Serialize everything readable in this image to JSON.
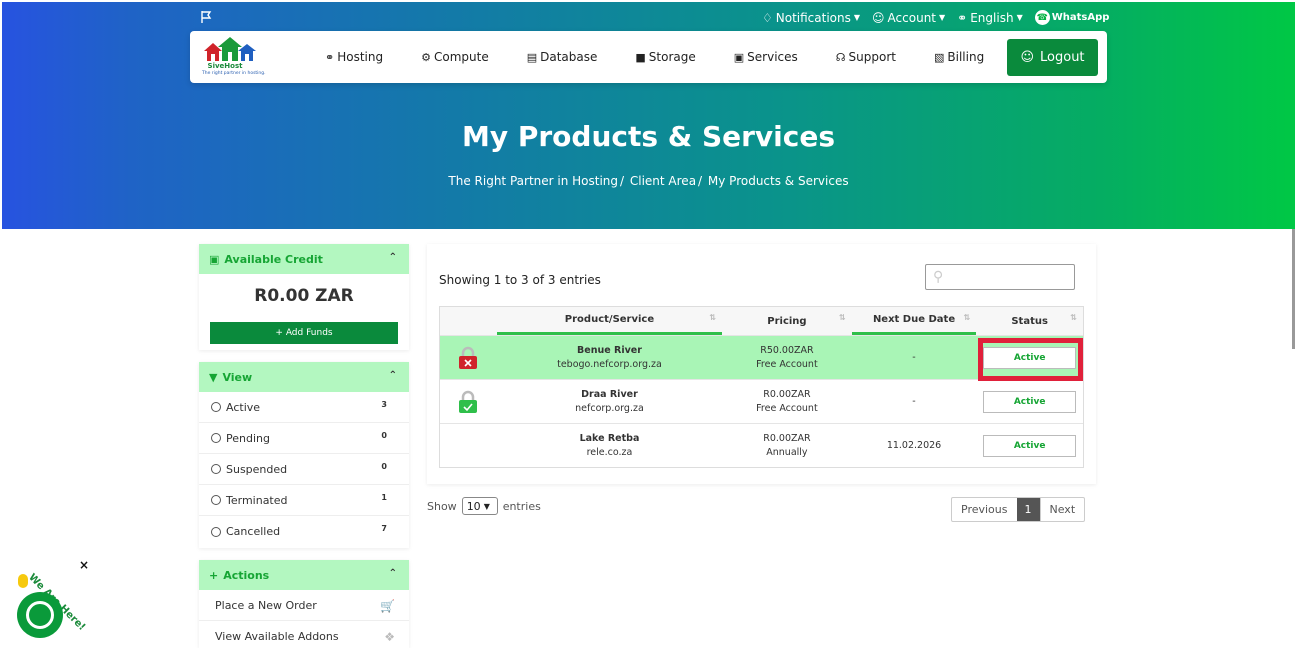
{
  "topbar": {
    "notifications": "Notifications",
    "account": "Account",
    "language": "English",
    "whatsapp": "WhatsApp"
  },
  "brand": {
    "name": "SiveHost",
    "tagline": "The right partner in hosting."
  },
  "nav": {
    "items": [
      {
        "label": "Hosting",
        "icon": "globe-icon"
      },
      {
        "label": "Compute",
        "icon": "gear-icon"
      },
      {
        "label": "Database",
        "icon": "database-icon"
      },
      {
        "label": "Storage",
        "icon": "box-icon"
      },
      {
        "label": "Services",
        "icon": "gift-icon"
      },
      {
        "label": "Support",
        "icon": "headset-icon"
      },
      {
        "label": "Billing",
        "icon": "receipt-icon"
      }
    ],
    "logout": "Logout"
  },
  "page": {
    "title": "My Products & Services",
    "breadcrumb": [
      "The Right Partner in Hosting",
      "Client Area",
      "My Products & Services"
    ]
  },
  "sidebar": {
    "credit": {
      "title": "Available Credit",
      "amount": "R0.00 ZAR",
      "add_funds": "Add Funds"
    },
    "view": {
      "title": "View",
      "items": [
        {
          "label": "Active",
          "count": "3"
        },
        {
          "label": "Pending",
          "count": "0"
        },
        {
          "label": "Suspended",
          "count": "0"
        },
        {
          "label": "Terminated",
          "count": "1"
        },
        {
          "label": "Cancelled",
          "count": "7"
        }
      ]
    },
    "actions": {
      "title": "Actions",
      "items": [
        {
          "label": "Place a New Order"
        },
        {
          "label": "View Available Addons"
        }
      ]
    }
  },
  "table": {
    "showing": "Showing 1 to 3 of 3 entries",
    "headers": [
      "Product/Service",
      "Pricing",
      "Next Due Date",
      "Status"
    ],
    "rows": [
      {
        "name": "Benue River",
        "domain": "tebogo.nefcorp.org.za",
        "price": "R50.00ZAR",
        "cycle": "Free Account",
        "due": "-",
        "status": "Active",
        "lock": "red"
      },
      {
        "name": "Draa River",
        "domain": "nefcorp.org.za",
        "price": "R0.00ZAR",
        "cycle": "Free Account",
        "due": "-",
        "status": "Active",
        "lock": "green"
      },
      {
        "name": "Lake Retba",
        "domain": "rele.co.za",
        "price": "R0.00ZAR",
        "cycle": "Annually",
        "due": "11.02.2026",
        "status": "Active",
        "lock": "none"
      }
    ],
    "show_label": "Show",
    "page_size": "10",
    "entries_label": "entries",
    "pager": {
      "prev": "Previous",
      "current": "1",
      "next": "Next"
    }
  },
  "chat": {
    "label": "We Are Here!",
    "close": "×"
  },
  "colors": {
    "accent": "#0a8a3c",
    "highlight_row": "#a9f5b6",
    "panel_header": "#b3f7c0",
    "alert_box": "#e0203a"
  }
}
